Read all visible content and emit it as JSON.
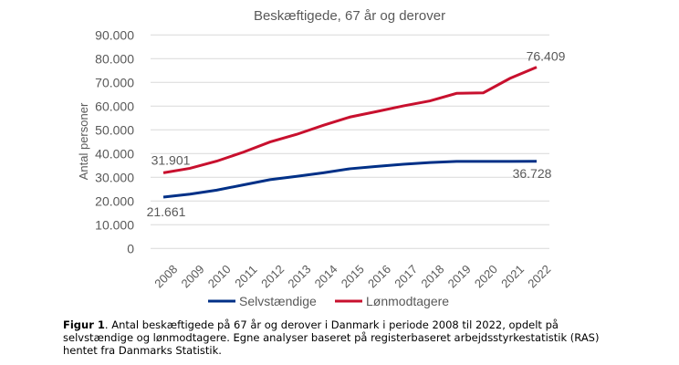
{
  "chart_data": {
    "type": "line",
    "title": "Beskæftigede, 67 år og derover",
    "xlabel": "",
    "ylabel": "Antal personer",
    "ylim": [
      0,
      90000
    ],
    "yticks": [
      "0",
      "10.000",
      "20.000",
      "30.000",
      "40.000",
      "50.000",
      "60.000",
      "70.000",
      "80.000",
      "90.000"
    ],
    "ytick_values": [
      0,
      10000,
      20000,
      30000,
      40000,
      50000,
      60000,
      70000,
      80000,
      90000
    ],
    "categories": [
      "2008",
      "2009",
      "2010",
      "2011",
      "2012",
      "2013",
      "2014",
      "2015",
      "2016",
      "2017",
      "2018",
      "2019",
      "2020",
      "2021",
      "2022"
    ],
    "grid": true,
    "legend": "bottom",
    "series": [
      {
        "name": "Selvstændige",
        "color": "#003087",
        "values": [
          21661,
          22900,
          24600,
          26800,
          29000,
          30400,
          31900,
          33600,
          34600,
          35500,
          36200,
          36700,
          36700,
          36700,
          36728
        ],
        "labels": {
          "first": "21.661",
          "last": "36.728"
        }
      },
      {
        "name": "Lønmodtagere",
        "color": "#C8102E",
        "values": [
          31901,
          33800,
          36800,
          40600,
          44900,
          48100,
          51900,
          55400,
          57700,
          60100,
          62200,
          65400,
          65600,
          71700,
          76409
        ],
        "labels": {
          "first": "31.901",
          "last": "76.409"
        }
      }
    ]
  },
  "caption": {
    "label": "Figur 1",
    "text": ". Antal beskæftigede på 67 år og derover i Danmark i periode 2008 til 2022, opdelt på selvstændige og lønmodtagere. Egne analyser baseret på registerbaseret arbejdsstyrkestatistik (RAS) hentet fra Danmarks Statistik."
  }
}
